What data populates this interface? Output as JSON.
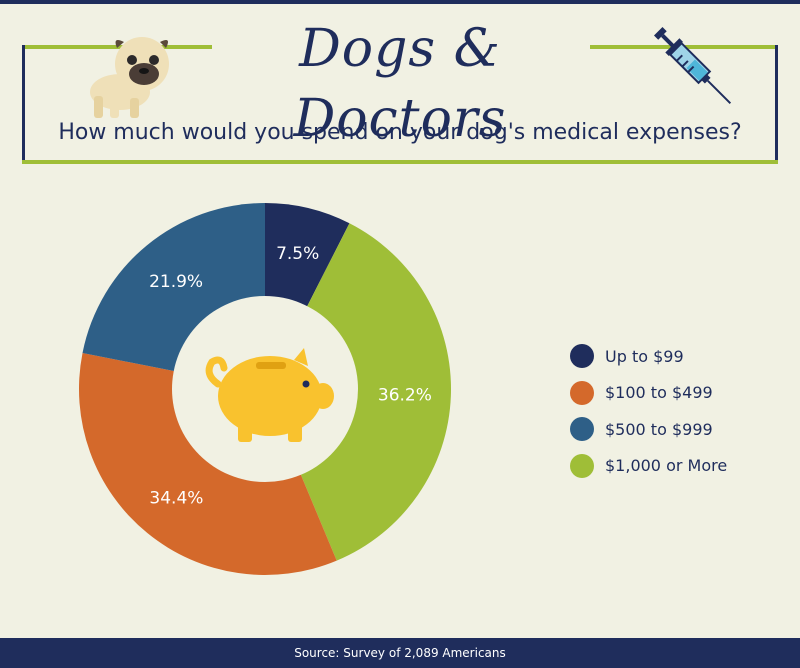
{
  "header": {
    "title": "Dogs & Doctors",
    "subtitle": "How much would you spend on your dog's medical expenses?"
  },
  "chart_data": {
    "type": "pie",
    "categories": [
      "Up to $99",
      "$1,000 or More",
      "$100 to $499",
      "$500 to $999"
    ],
    "values": [
      7.5,
      36.2,
      34.4,
      21.9
    ],
    "labels": [
      "7.5%",
      "36.2%",
      "34.4%",
      "21.9%"
    ],
    "colors": [
      "#1f2d5c",
      "#9fbe37",
      "#d4692b",
      "#2e5f87"
    ],
    "unit": "%",
    "donut": true,
    "center_icon": "piggy-bank-icon"
  },
  "legend": [
    {
      "label": "Up to $99",
      "color": "#1f2d5c"
    },
    {
      "label": "$100 to $499",
      "color": "#d4692b"
    },
    {
      "label": "$500 to $999",
      "color": "#2e5f87"
    },
    {
      "label": "$1,000 or More",
      "color": "#9fbe37"
    }
  ],
  "footer": {
    "source": "Source: Survey of 2,089 Americans"
  },
  "colors": {
    "navy": "#1f2d5c",
    "green": "#9fbe37",
    "orange": "#d4692b",
    "blue": "#2e5f87",
    "background": "#f1f1e3",
    "piggy": "#f9c22e"
  },
  "icons": [
    "pug-dog-icon",
    "syringe-icon",
    "piggy-bank-icon"
  ]
}
